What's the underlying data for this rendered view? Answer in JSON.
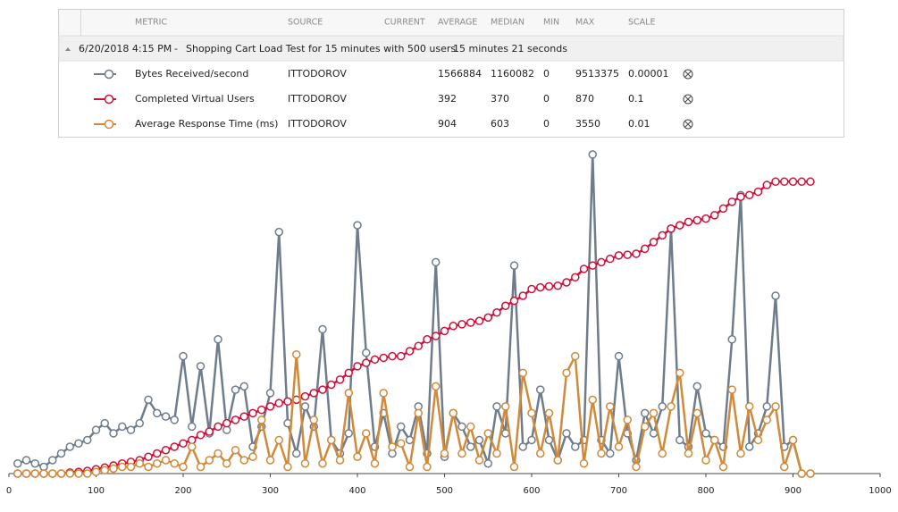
{
  "table": {
    "columns": [
      "METRIC",
      "SOURCE",
      "CURRENT",
      "AVERAGE",
      "MEDIAN",
      "MIN",
      "MAX",
      "SCALE"
    ],
    "group": {
      "date": "6/20/2018 4:15 PM",
      "separator": "-",
      "description": "Shopping Cart Load Test for 15 minutes with 500 users",
      "duration": "15 minutes 21 seconds"
    },
    "rows": [
      {
        "source": "ITTODOROV",
        "average": 1566884,
        "median": 1160082,
        "min": 0,
        "max": 9513375,
        "scale": 1e-05
      },
      {
        "source": "ITTODOROV",
        "average": 392,
        "median": 370,
        "min": 0,
        "max": 870,
        "scale": 0.1
      },
      {
        "source": "ITTODOROV",
        "average": 904,
        "median": 603,
        "min": 0,
        "max": 3550,
        "scale": 0.01
      }
    ]
  },
  "chart_data": {
    "type": "line",
    "xlim": [
      0,
      1000
    ],
    "xticks": [
      0,
      100,
      200,
      300,
      400,
      500,
      600,
      700,
      800,
      900,
      1000
    ],
    "ylim": [
      0,
      98
    ],
    "x": [
      10,
      20,
      30,
      40,
      50,
      60,
      70,
      80,
      90,
      100,
      110,
      120,
      130,
      140,
      150,
      160,
      170,
      180,
      190,
      200,
      210,
      220,
      230,
      240,
      250,
      260,
      270,
      280,
      290,
      300,
      310,
      320,
      330,
      340,
      350,
      360,
      370,
      380,
      390,
      400,
      410,
      420,
      430,
      440,
      450,
      460,
      470,
      480,
      490,
      500,
      510,
      520,
      530,
      540,
      550,
      560,
      570,
      580,
      590,
      600,
      610,
      620,
      630,
      640,
      650,
      660,
      670,
      680,
      690,
      700,
      710,
      720,
      730,
      740,
      750,
      760,
      770,
      780,
      790,
      800,
      810,
      820,
      830,
      840,
      850,
      860,
      870,
      880,
      890,
      900,
      910,
      920
    ],
    "series": [
      {
        "name": "Bytes Received/second",
        "color": "#6e7c8c",
        "values": [
          3,
          4,
          3,
          2,
          4,
          6,
          8,
          9,
          10,
          13,
          15,
          12,
          14,
          13,
          15,
          22,
          18,
          17,
          16,
          35,
          14,
          32,
          12,
          40,
          13,
          25,
          26,
          8,
          14,
          24,
          72,
          15,
          6,
          20,
          14,
          43,
          10,
          6,
          12,
          74,
          36,
          8,
          18,
          6,
          14,
          10,
          20,
          6,
          63,
          5,
          18,
          14,
          8,
          10,
          3,
          20,
          12,
          62,
          8,
          10,
          25,
          10,
          4,
          12,
          8,
          10,
          95.1,
          10,
          6,
          35,
          12,
          4,
          18,
          12,
          20,
          73,
          10,
          8,
          26,
          12,
          10,
          8,
          40,
          83,
          8,
          12,
          20,
          53,
          8,
          10,
          0,
          0
        ]
      },
      {
        "name": "Completed Virtual Users",
        "color": "#d0103a",
        "values": [
          0,
          0,
          0,
          0,
          0,
          0,
          0.3,
          0.5,
          0.8,
          1.3,
          1.8,
          2.4,
          3,
          3.5,
          4,
          5,
          6,
          7,
          8,
          9,
          10,
          11.5,
          12.5,
          14,
          15,
          16,
          17,
          18,
          19,
          20,
          21,
          21.5,
          22,
          23,
          24,
          25,
          26.5,
          28,
          30,
          32,
          33,
          34,
          34.5,
          35,
          35,
          36.5,
          38,
          40,
          41,
          42.5,
          44,
          44.5,
          45,
          45.5,
          46.5,
          48,
          50,
          51.5,
          53,
          55,
          55.5,
          55.8,
          56,
          57,
          58.5,
          61,
          62,
          63,
          64,
          65,
          65.2,
          65.5,
          67,
          69,
          71,
          73,
          74,
          75,
          75.5,
          76,
          77,
          79,
          81,
          82.5,
          83,
          84,
          86,
          87,
          87,
          87,
          87,
          87
        ]
      },
      {
        "name": "Average Response Time (ms)",
        "color": "#d08a3a",
        "values": [
          0,
          0,
          0,
          0,
          0,
          0,
          0,
          0,
          0,
          0.5,
          1,
          1.5,
          2,
          2,
          3,
          2,
          3,
          4,
          3,
          2,
          8,
          2,
          4,
          6,
          3,
          7,
          4,
          5,
          16,
          4,
          10,
          2,
          35.5,
          3,
          16,
          3,
          10,
          4,
          24,
          5,
          12,
          3,
          24,
          8,
          9,
          2,
          18,
          2,
          26,
          6,
          18,
          6,
          14,
          4,
          12,
          6,
          20,
          2,
          30,
          18,
          6,
          18,
          4,
          30,
          35,
          3,
          22,
          6,
          20,
          8,
          16,
          2,
          14,
          18,
          6,
          20,
          30,
          6,
          18,
          4,
          10,
          2,
          25,
          6,
          20,
          10,
          16,
          20,
          2,
          10,
          0,
          0
        ]
      }
    ]
  }
}
